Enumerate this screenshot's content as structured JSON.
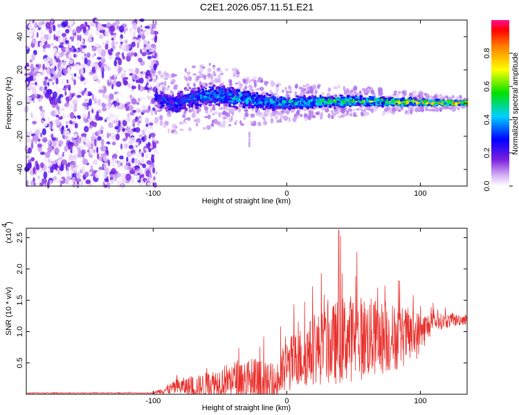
{
  "figure": {
    "title": "C2E1.2026.057.11.51.E21"
  },
  "chart_data": [
    {
      "type": "heatmap",
      "name": "spectrogram",
      "xlabel": "Height of straight line (km)",
      "ylabel": "Frequency (Hz)",
      "xlim": [
        -195,
        135
      ],
      "ylim": [
        -50,
        50
      ],
      "x_ticks": [
        -100,
        0,
        100
      ],
      "y_ticks": [
        -40,
        -20,
        0,
        20,
        40
      ],
      "colorbar": {
        "label": "Normalized spectral amplitude",
        "range": [
          0,
          1
        ],
        "ticks": [
          "0.0",
          "0.2",
          "0.4",
          "0.6",
          "0.8"
        ],
        "tick_values": [
          0.0,
          0.2,
          0.4,
          0.6,
          0.8
        ]
      },
      "noise_region": {
        "x_from": -195,
        "x_to": -97,
        "freq_from": -50,
        "freq_to": 50
      },
      "signal_band": {
        "x_from": -98,
        "x_to": 135,
        "center_freq_hz": [
          [
            -98,
            4
          ],
          [
            -85,
            -1
          ],
          [
            -70,
            3
          ],
          [
            -55,
            5
          ],
          [
            -35,
            3
          ],
          [
            -20,
            1
          ],
          [
            0,
            0
          ],
          [
            30,
            1
          ],
          [
            60,
            1
          ],
          [
            90,
            0.5
          ],
          [
            135,
            0
          ]
        ],
        "half_width_hz": [
          [
            -98,
            8
          ],
          [
            -60,
            9
          ],
          [
            -30,
            7
          ],
          [
            0,
            5
          ],
          [
            50,
            4
          ],
          [
            100,
            2.5
          ],
          [
            135,
            1.5
          ]
        ],
        "peak_amplitude": [
          [
            -98,
            0.35
          ],
          [
            -40,
            0.5
          ],
          [
            0,
            0.55
          ],
          [
            60,
            0.7
          ],
          [
            100,
            0.85
          ],
          [
            135,
            0.95
          ]
        ]
      },
      "outlier": {
        "x": -28,
        "freq_from": -26,
        "freq_to": -18
      }
    },
    {
      "type": "line",
      "name": "snr",
      "xlabel": "Height of straight line (km)",
      "ylabel": "SNR (10 * v/v)",
      "multiplier": "(x10",
      "multiplier_exp": "4",
      "xlim": [
        -195,
        135
      ],
      "ylim": [
        0,
        2.65
      ],
      "x_ticks": [
        -100,
        0,
        100
      ],
      "y_ticks": [
        0.5,
        1.0,
        1.5,
        2.0,
        2.5
      ],
      "y_tick_labels": [
        "0.5",
        "1.0",
        "1.5",
        "2.0",
        "2.5"
      ],
      "color": "#e8302c",
      "envelope": [
        {
          "x": -195,
          "base": 0.02,
          "amp": 0.01
        },
        {
          "x": -100,
          "base": 0.02,
          "amp": 0.01
        },
        {
          "x": -95,
          "base": 0.05,
          "amp": 0.08
        },
        {
          "x": -80,
          "base": 0.12,
          "amp": 0.25
        },
        {
          "x": -65,
          "base": 0.12,
          "amp": 0.35
        },
        {
          "x": -50,
          "base": 0.2,
          "amp": 0.45
        },
        {
          "x": -35,
          "base": 0.25,
          "amp": 0.6
        },
        {
          "x": -22,
          "base": 0.1,
          "amp": 0.9
        },
        {
          "x": -10,
          "base": 0.1,
          "amp": 0.6
        },
        {
          "x": 0,
          "base": 0.45,
          "amp": 0.8
        },
        {
          "x": 20,
          "base": 0.7,
          "amp": 1.0
        },
        {
          "x": 35,
          "base": 0.8,
          "amp": 1.2
        },
        {
          "x": 45,
          "base": 0.9,
          "amp": 1.3
        },
        {
          "x": 60,
          "base": 0.9,
          "amp": 1.2
        },
        {
          "x": 80,
          "base": 0.9,
          "amp": 1.0
        },
        {
          "x": 98,
          "base": 0.95,
          "amp": 0.7
        },
        {
          "x": 110,
          "base": 1.15,
          "amp": 0.25
        },
        {
          "x": 135,
          "base": 1.2,
          "amp": 0.15
        }
      ],
      "peak_max": 2.62
    }
  ]
}
